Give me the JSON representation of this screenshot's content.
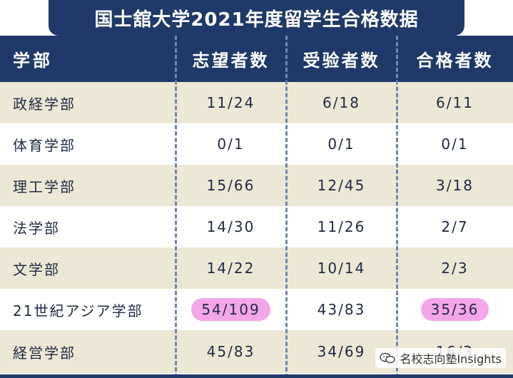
{
  "title": "国士舘大学2021年度留学生合格数据",
  "headers": [
    "学部",
    "志望者数",
    "受验者数",
    "合格者数"
  ],
  "rows": [
    {
      "dept": "政経学部",
      "applicants": "11/24",
      "examinees": "6/18",
      "passed": "6/11"
    },
    {
      "dept": "体育学部",
      "applicants": "0/1",
      "examinees": "0/1",
      "passed": "0/1"
    },
    {
      "dept": "理工学部",
      "applicants": "15/66",
      "examinees": "12/45",
      "passed": "3/18"
    },
    {
      "dept": "法学部",
      "applicants": "14/30",
      "examinees": "11/26",
      "passed": "2/7"
    },
    {
      "dept": "文学部",
      "applicants": "14/22",
      "examinees": "10/14",
      "passed": "2/3"
    },
    {
      "dept": "21世紀アジア学部",
      "applicants": "54/109",
      "examinees": "43/83",
      "passed": "35/36"
    },
    {
      "dept": "経営学部",
      "applicants": "45/83",
      "examinees": "34/69",
      "passed": "16/3"
    }
  ],
  "highlight_color": "#f3a6ea",
  "header_color": "#1f3a68",
  "stripe_color": "#ede8d5",
  "watermark_badge": "名校志向塾Insights",
  "badge_icon": "wechat-icon"
}
